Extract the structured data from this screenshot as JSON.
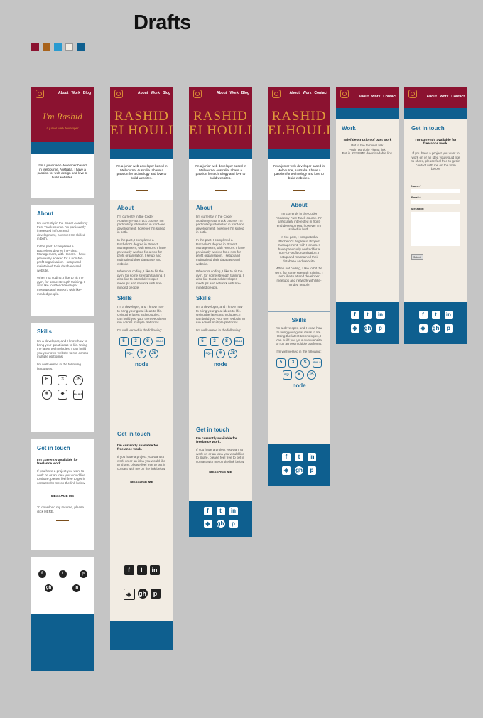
{
  "page_title": "Drafts",
  "palette": [
    "#8b1230",
    "#a8631c",
    "#2a9bd0",
    "#f2ece3",
    "#0e5f8f"
  ],
  "nav": {
    "about": "About",
    "work": "Work",
    "blog": "Blog",
    "contact": "Contact"
  },
  "hero": {
    "name_script": "I'm Rashid",
    "name_caps_1": "RASHID",
    "name_caps_2": "ELHOULI",
    "tagline": "a junior web developer"
  },
  "intro": "I'm a junior web developer based in Melbourne, Australia. I have a passion for technology and love to build websites.",
  "intro_v1": "I'm a junior web developer based in Melbourne, Australia. I have a passion for web design and love to build websites.",
  "about": {
    "heading": "About",
    "p1": "I'm currently in the Coder Academy Fast Track course. I'm particularly interested in front-end development, however I'm skilled in both.",
    "p2": "In the past, I completed a Bachelor's degree in Project Management, with Honors. I have previously worked for a non-for-profit organisation. I setup and maintained their database and website.",
    "p3": "When not coding, I like to hit the gym, for some strength training. I also like to attend developer meetups and network with like-minded people."
  },
  "skills": {
    "heading": "Skills",
    "p1": "I'm a developer, and I know how to bring your great ideas to life. Using the latest technologies, I can build you your own website to run across multiple platforms.",
    "p2": "I'm well versed in the following:",
    "p2_v1": "I'm well versed in the following languages:",
    "icons": [
      "html5-icon",
      "css3-icon",
      "sass-icon",
      "rails-icon",
      "sql-icon",
      "react-icon",
      "js-icon",
      "node-icon"
    ],
    "labels": {
      "rails": "RAILS",
      "node": "node",
      "ruby": "Ruby",
      "sql": "SQL",
      "js": "JS",
      "html": "5",
      "css": "3"
    }
  },
  "contact": {
    "heading": "Get in touch",
    "available": "I'm currently available for freelance work.",
    "body": "If you have a project you want to work on or an idea you would like to share, please feel free to get in contact with me on the link below.",
    "body_v6": "If you have a project you want to work on or an idea you would like to share, please feel free to get in contact with me on the form below.",
    "button": "MESSAGE ME",
    "resume": "To download my resume, please click HERE.",
    "form": {
      "name": "Name:*",
      "email": "Email:*",
      "message": "Message:",
      "submit": "Submit"
    }
  },
  "work": {
    "heading": "Work",
    "title": "Brief description of past work",
    "lines": [
      "Put in the terminal link.",
      "Put in portfolio Figma link.",
      "Put in RESUME downloadable link."
    ]
  },
  "social": {
    "facebook": "f",
    "twitter": "t",
    "linkedin": "in",
    "codepen": "◈",
    "github": "gh",
    "pinterest": "p"
  }
}
